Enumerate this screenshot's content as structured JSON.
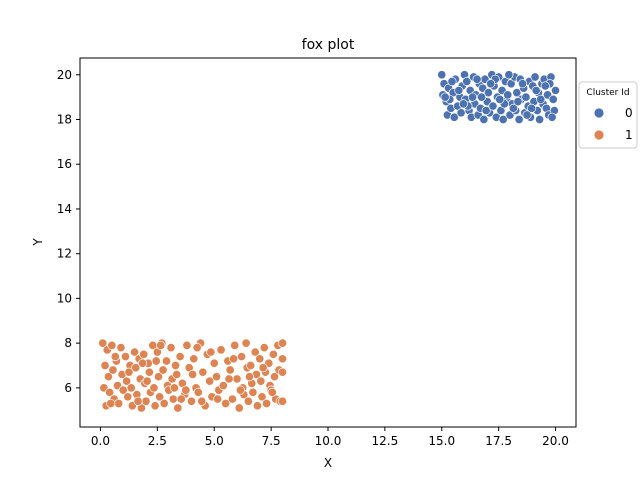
{
  "chart_data": {
    "type": "scatter",
    "title": "fox plot",
    "xlabel": "X",
    "ylabel": "Y",
    "xlim": [
      -0.9,
      20.9
    ],
    "ylim": [
      4.25,
      20.75
    ],
    "xticks": [
      0.0,
      2.5,
      5.0,
      7.5,
      10.0,
      12.5,
      15.0,
      17.5,
      20.0
    ],
    "xtick_labels": [
      "0.0",
      "2.5",
      "5.0",
      "7.5",
      "10.0",
      "12.5",
      "15.0",
      "17.5",
      "20.0"
    ],
    "yticks": [
      6,
      8,
      10,
      12,
      14,
      16,
      18,
      20
    ],
    "ytick_labels": [
      "6",
      "8",
      "10",
      "12",
      "14",
      "16",
      "18",
      "20"
    ],
    "grid": false,
    "legend": {
      "title": "Cluster Id",
      "placement": "outside-top-right",
      "entries": [
        {
          "label": "0",
          "color": "#4c72b0"
        },
        {
          "label": "1",
          "color": "#dd8452"
        }
      ]
    },
    "series": [
      {
        "name": "0",
        "color": "#4c72b0",
        "points": [
          [
            15.0,
            20.0
          ],
          [
            15.05,
            19.1
          ],
          [
            15.1,
            19.6
          ],
          [
            15.2,
            18.8
          ],
          [
            15.25,
            18.2
          ],
          [
            15.3,
            19.4
          ],
          [
            15.4,
            18.5
          ],
          [
            15.5,
            19.2
          ],
          [
            15.55,
            18.1
          ],
          [
            15.6,
            19.8
          ],
          [
            15.7,
            18.6
          ],
          [
            15.8,
            19.0
          ],
          [
            15.85,
            18.3
          ],
          [
            15.9,
            19.5
          ],
          [
            16.0,
            20.0
          ],
          [
            16.05,
            18.9
          ],
          [
            16.1,
            19.7
          ],
          [
            16.2,
            18.4
          ],
          [
            16.25,
            19.3
          ],
          [
            16.3,
            18.1
          ],
          [
            16.4,
            19.9
          ],
          [
            16.45,
            18.7
          ],
          [
            16.5,
            19.1
          ],
          [
            16.6,
            18.2
          ],
          [
            16.65,
            19.6
          ],
          [
            16.7,
            18.5
          ],
          [
            16.8,
            19.4
          ],
          [
            16.85,
            18.0
          ],
          [
            16.9,
            19.8
          ],
          [
            17.0,
            18.8
          ],
          [
            17.05,
            19.2
          ],
          [
            17.1,
            18.3
          ],
          [
            17.2,
            20.0
          ],
          [
            17.25,
            18.6
          ],
          [
            17.3,
            19.5
          ],
          [
            17.4,
            18.1
          ],
          [
            17.45,
            19.0
          ],
          [
            17.5,
            19.9
          ],
          [
            17.6,
            18.4
          ],
          [
            17.65,
            19.3
          ],
          [
            17.7,
            18.0
          ],
          [
            17.8,
            19.7
          ],
          [
            17.85,
            18.9
          ],
          [
            17.9,
            19.1
          ],
          [
            18.0,
            18.2
          ],
          [
            18.05,
            19.6
          ],
          [
            18.1,
            18.7
          ],
          [
            18.2,
            19.9
          ],
          [
            18.25,
            18.4
          ],
          [
            18.3,
            19.2
          ],
          [
            18.4,
            18.0
          ],
          [
            18.45,
            19.8
          ],
          [
            18.5,
            18.9
          ],
          [
            18.6,
            19.4
          ],
          [
            18.65,
            18.3
          ],
          [
            18.7,
            19.0
          ],
          [
            18.8,
            18.6
          ],
          [
            18.85,
            19.7
          ],
          [
            18.9,
            18.1
          ],
          [
            19.0,
            19.5
          ],
          [
            19.05,
            18.8
          ],
          [
            19.1,
            19.9
          ],
          [
            19.2,
            18.4
          ],
          [
            19.25,
            19.2
          ],
          [
            19.3,
            18.0
          ],
          [
            19.4,
            19.6
          ],
          [
            19.45,
            18.7
          ],
          [
            19.5,
            19.8
          ],
          [
            19.6,
            18.5
          ],
          [
            19.65,
            19.1
          ],
          [
            19.7,
            18.2
          ],
          [
            19.8,
            19.9
          ],
          [
            19.9,
            18.9
          ],
          [
            20.0,
            19.3
          ],
          [
            19.95,
            18.4
          ],
          [
            19.75,
            19.6
          ],
          [
            19.35,
            18.9
          ],
          [
            18.95,
            18.5
          ],
          [
            18.55,
            19.6
          ],
          [
            18.15,
            18.5
          ],
          [
            17.75,
            18.7
          ],
          [
            17.35,
            19.8
          ],
          [
            16.95,
            18.4
          ],
          [
            16.55,
            19.8
          ],
          [
            16.15,
            18.6
          ],
          [
            15.75,
            19.3
          ],
          [
            15.35,
            18.9
          ],
          [
            15.15,
            19.0
          ],
          [
            15.95,
            18.7
          ],
          [
            16.75,
            19.0
          ],
          [
            17.55,
            18.9
          ],
          [
            18.35,
            18.8
          ],
          [
            19.15,
            19.3
          ],
          [
            19.55,
            19.5
          ],
          [
            17.15,
            19.6
          ],
          [
            16.35,
            19.0
          ],
          [
            15.45,
            19.7
          ],
          [
            18.75,
            18.2
          ],
          [
            19.85,
            18.1
          ],
          [
            17.95,
            20.0
          ]
        ]
      },
      {
        "name": "1",
        "color": "#dd8452",
        "points": [
          [
            0.1,
            8.0
          ],
          [
            0.15,
            6.0
          ],
          [
            0.2,
            7.0
          ],
          [
            0.25,
            5.2
          ],
          [
            0.3,
            7.7
          ],
          [
            0.35,
            6.5
          ],
          [
            0.4,
            5.8
          ],
          [
            0.5,
            7.9
          ],
          [
            0.55,
            6.8
          ],
          [
            0.6,
            5.5
          ],
          [
            0.7,
            7.2
          ],
          [
            0.75,
            6.1
          ],
          [
            0.8,
            5.3
          ],
          [
            0.9,
            7.8
          ],
          [
            0.95,
            6.6
          ],
          [
            1.0,
            5.9
          ],
          [
            1.1,
            7.4
          ],
          [
            1.15,
            6.3
          ],
          [
            1.2,
            5.6
          ],
          [
            1.3,
            7.0
          ],
          [
            1.35,
            6.0
          ],
          [
            1.4,
            5.2
          ],
          [
            1.5,
            7.6
          ],
          [
            1.55,
            6.9
          ],
          [
            1.6,
            5.7
          ],
          [
            1.7,
            7.3
          ],
          [
            1.75,
            6.4
          ],
          [
            1.8,
            5.1
          ],
          [
            1.9,
            7.5
          ],
          [
            1.95,
            6.2
          ],
          [
            2.0,
            5.4
          ],
          [
            2.1,
            7.1
          ],
          [
            2.15,
            6.7
          ],
          [
            2.2,
            5.8
          ],
          [
            2.3,
            7.9
          ],
          [
            2.35,
            6.0
          ],
          [
            2.4,
            5.2
          ],
          [
            2.5,
            7.6
          ],
          [
            2.55,
            6.5
          ],
          [
            2.6,
            5.6
          ],
          [
            2.7,
            8.0
          ],
          [
            2.75,
            6.8
          ],
          [
            2.8,
            5.3
          ],
          [
            2.9,
            7.2
          ],
          [
            2.95,
            6.1
          ],
          [
            3.0,
            5.9
          ],
          [
            3.1,
            7.8
          ],
          [
            3.15,
            6.4
          ],
          [
            3.2,
            5.5
          ],
          [
            3.3,
            7.0
          ],
          [
            3.35,
            6.6
          ],
          [
            3.4,
            5.1
          ],
          [
            3.5,
            7.4
          ],
          [
            3.6,
            6.2
          ],
          [
            3.7,
            5.7
          ],
          [
            3.8,
            7.9
          ],
          [
            3.9,
            6.9
          ],
          [
            4.0,
            5.4
          ],
          [
            4.1,
            7.3
          ],
          [
            4.2,
            6.0
          ],
          [
            4.3,
            5.8
          ],
          [
            4.4,
            8.0
          ],
          [
            4.5,
            6.7
          ],
          [
            4.6,
            5.2
          ],
          [
            4.7,
            7.5
          ],
          [
            4.8,
            6.3
          ],
          [
            4.9,
            5.6
          ],
          [
            5.0,
            7.1
          ],
          [
            5.1,
            6.5
          ],
          [
            5.2,
            5.9
          ],
          [
            5.3,
            7.7
          ],
          [
            5.4,
            6.1
          ],
          [
            5.5,
            5.3
          ],
          [
            5.6,
            7.2
          ],
          [
            5.7,
            6.8
          ],
          [
            5.8,
            5.5
          ],
          [
            5.9,
            7.9
          ],
          [
            6.0,
            6.4
          ],
          [
            6.1,
            5.1
          ],
          [
            6.2,
            7.4
          ],
          [
            6.25,
            6.0
          ],
          [
            6.3,
            5.7
          ],
          [
            6.4,
            8.0
          ],
          [
            6.45,
            6.9
          ],
          [
            6.5,
            5.4
          ],
          [
            6.6,
            7.0
          ],
          [
            6.65,
            6.2
          ],
          [
            6.7,
            5.8
          ],
          [
            6.8,
            7.6
          ],
          [
            6.85,
            6.6
          ],
          [
            6.9,
            5.2
          ],
          [
            7.0,
            7.3
          ],
          [
            7.05,
            6.3
          ],
          [
            7.1,
            5.6
          ],
          [
            7.2,
            7.8
          ],
          [
            7.25,
            6.7
          ],
          [
            7.3,
            5.3
          ],
          [
            7.4,
            7.1
          ],
          [
            7.45,
            6.1
          ],
          [
            7.5,
            5.9
          ],
          [
            7.6,
            7.5
          ],
          [
            7.65,
            6.5
          ],
          [
            7.7,
            5.5
          ],
          [
            7.8,
            7.9
          ],
          [
            7.85,
            6.8
          ],
          [
            7.9,
            5.4
          ],
          [
            8.0,
            8.0
          ],
          [
            8.0,
            7.3
          ],
          [
            8.0,
            6.7
          ],
          [
            8.0,
            5.4
          ],
          [
            2.45,
            7.2
          ],
          [
            3.25,
            6.0
          ],
          [
            4.05,
            6.6
          ],
          [
            4.85,
            7.6
          ],
          [
            5.65,
            6.4
          ],
          [
            1.25,
            6.7
          ],
          [
            0.65,
            7.4
          ],
          [
            3.75,
            5.9
          ],
          [
            5.15,
            5.5
          ],
          [
            6.15,
            5.9
          ],
          [
            7.15,
            6.9
          ],
          [
            2.05,
            6.3
          ],
          [
            4.45,
            5.4
          ],
          [
            1.65,
            5.4
          ],
          [
            3.55,
            5.5
          ],
          [
            7.55,
            5.8
          ],
          [
            6.55,
            6.5
          ],
          [
            0.45,
            5.3
          ],
          [
            5.85,
            7.3
          ],
          [
            2.65,
            7.9
          ],
          [
            4.25,
            7.8
          ],
          [
            1.85,
            7.1
          ]
        ]
      }
    ]
  }
}
